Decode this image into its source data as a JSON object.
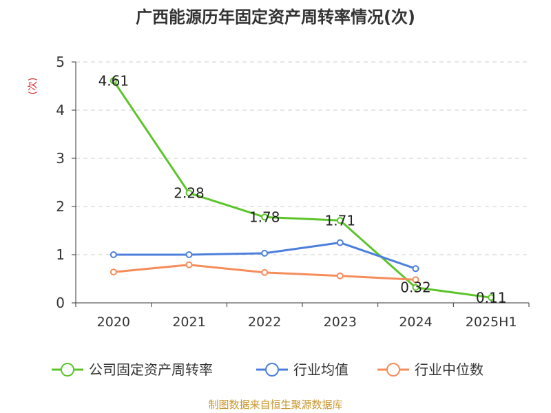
{
  "colors": {
    "series": [
      "#5cc42b",
      "#4c7fdc",
      "#f58c5a"
    ],
    "grid": "#cccccc",
    "axis": "#333333",
    "ylabel": "#d62728",
    "source": "#c8962e"
  },
  "chart_data": {
    "type": "line",
    "title": "广西能源历年固定资产周转率情况(次)",
    "ylabel": "(次)",
    "xlabel": "",
    "categories": [
      "2020",
      "2021",
      "2022",
      "2023",
      "2024",
      "2025H1"
    ],
    "ylim": [
      0,
      5
    ],
    "yticks": [
      "0",
      "1",
      "2",
      "3",
      "4",
      "5"
    ],
    "grid": "horizontal-dashed",
    "legend_position": "bottom",
    "series": [
      {
        "name": "公司固定资产周转率",
        "values": [
          4.61,
          2.28,
          1.78,
          1.71,
          0.32,
          0.11
        ],
        "labels": [
          "4.61",
          "2.28",
          "1.78",
          "1.71",
          "0.32",
          "0.11"
        ]
      },
      {
        "name": "行业均值",
        "values": [
          1.0,
          1.0,
          1.03,
          1.25,
          0.71,
          null
        ]
      },
      {
        "name": "行业中位数",
        "values": [
          0.64,
          0.79,
          0.63,
          0.56,
          0.48,
          null
        ]
      }
    ]
  },
  "source": "制图数据来自恒生聚源数据库"
}
